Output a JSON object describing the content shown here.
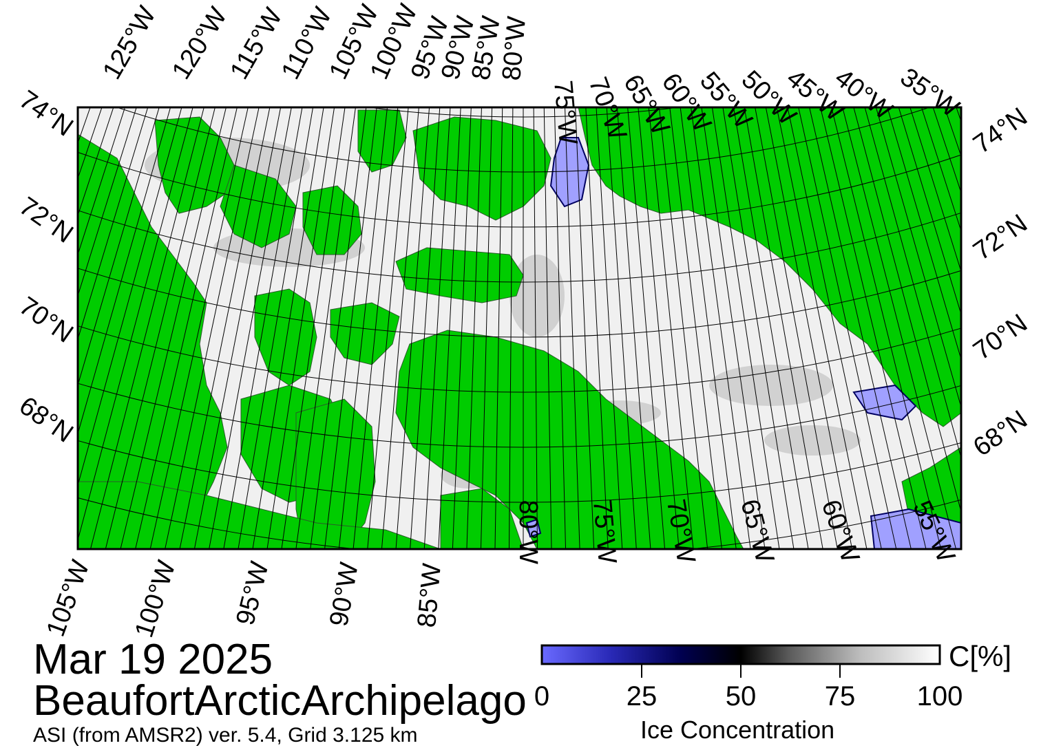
{
  "title": {
    "date": "Mar 19 2025",
    "region": "BeaufortArcticArchipelago",
    "source": "ASI (from AMSR2) ver. 5.4,  Grid 3.125 km"
  },
  "map": {
    "top_lon_labels": [
      "125°W",
      "120°W",
      "115°W",
      "110°W",
      "105°W",
      "100°W",
      "95°W",
      "90°W",
      "85°W",
      "80°W",
      "75°W",
      "70°W",
      "65°W",
      "60°W",
      "55°W",
      "50°W",
      "45°W",
      "40°W",
      "35°W"
    ],
    "bottom_lon_labels": [
      "105°W",
      "100°W",
      "95°W",
      "90°W",
      "85°W",
      "80°W",
      "75°W",
      "70°W",
      "65°W",
      "60°W",
      "55°W"
    ],
    "left_lat_labels": [
      "74°N",
      "72°N",
      "70°N",
      "68°N"
    ],
    "right_lat_labels": [
      "74°N",
      "72°N",
      "70°N",
      "68°N"
    ],
    "colors": {
      "land": "#00cc00",
      "ice_high": "#ffffff",
      "ice_mid": "#9a9a9a",
      "ice_low": "#000020",
      "open_water": "#a0a0ff"
    }
  },
  "colorbar": {
    "title": "Ice Concentration",
    "unit": "C[%]",
    "ticks": [
      "0",
      "25",
      "50",
      "75",
      "100"
    ],
    "stops": [
      "#6a6aff",
      "#2a2ab8",
      "#000050",
      "#000000",
      "#5a5a5a",
      "#bdbdbd",
      "#ffffff"
    ]
  }
}
